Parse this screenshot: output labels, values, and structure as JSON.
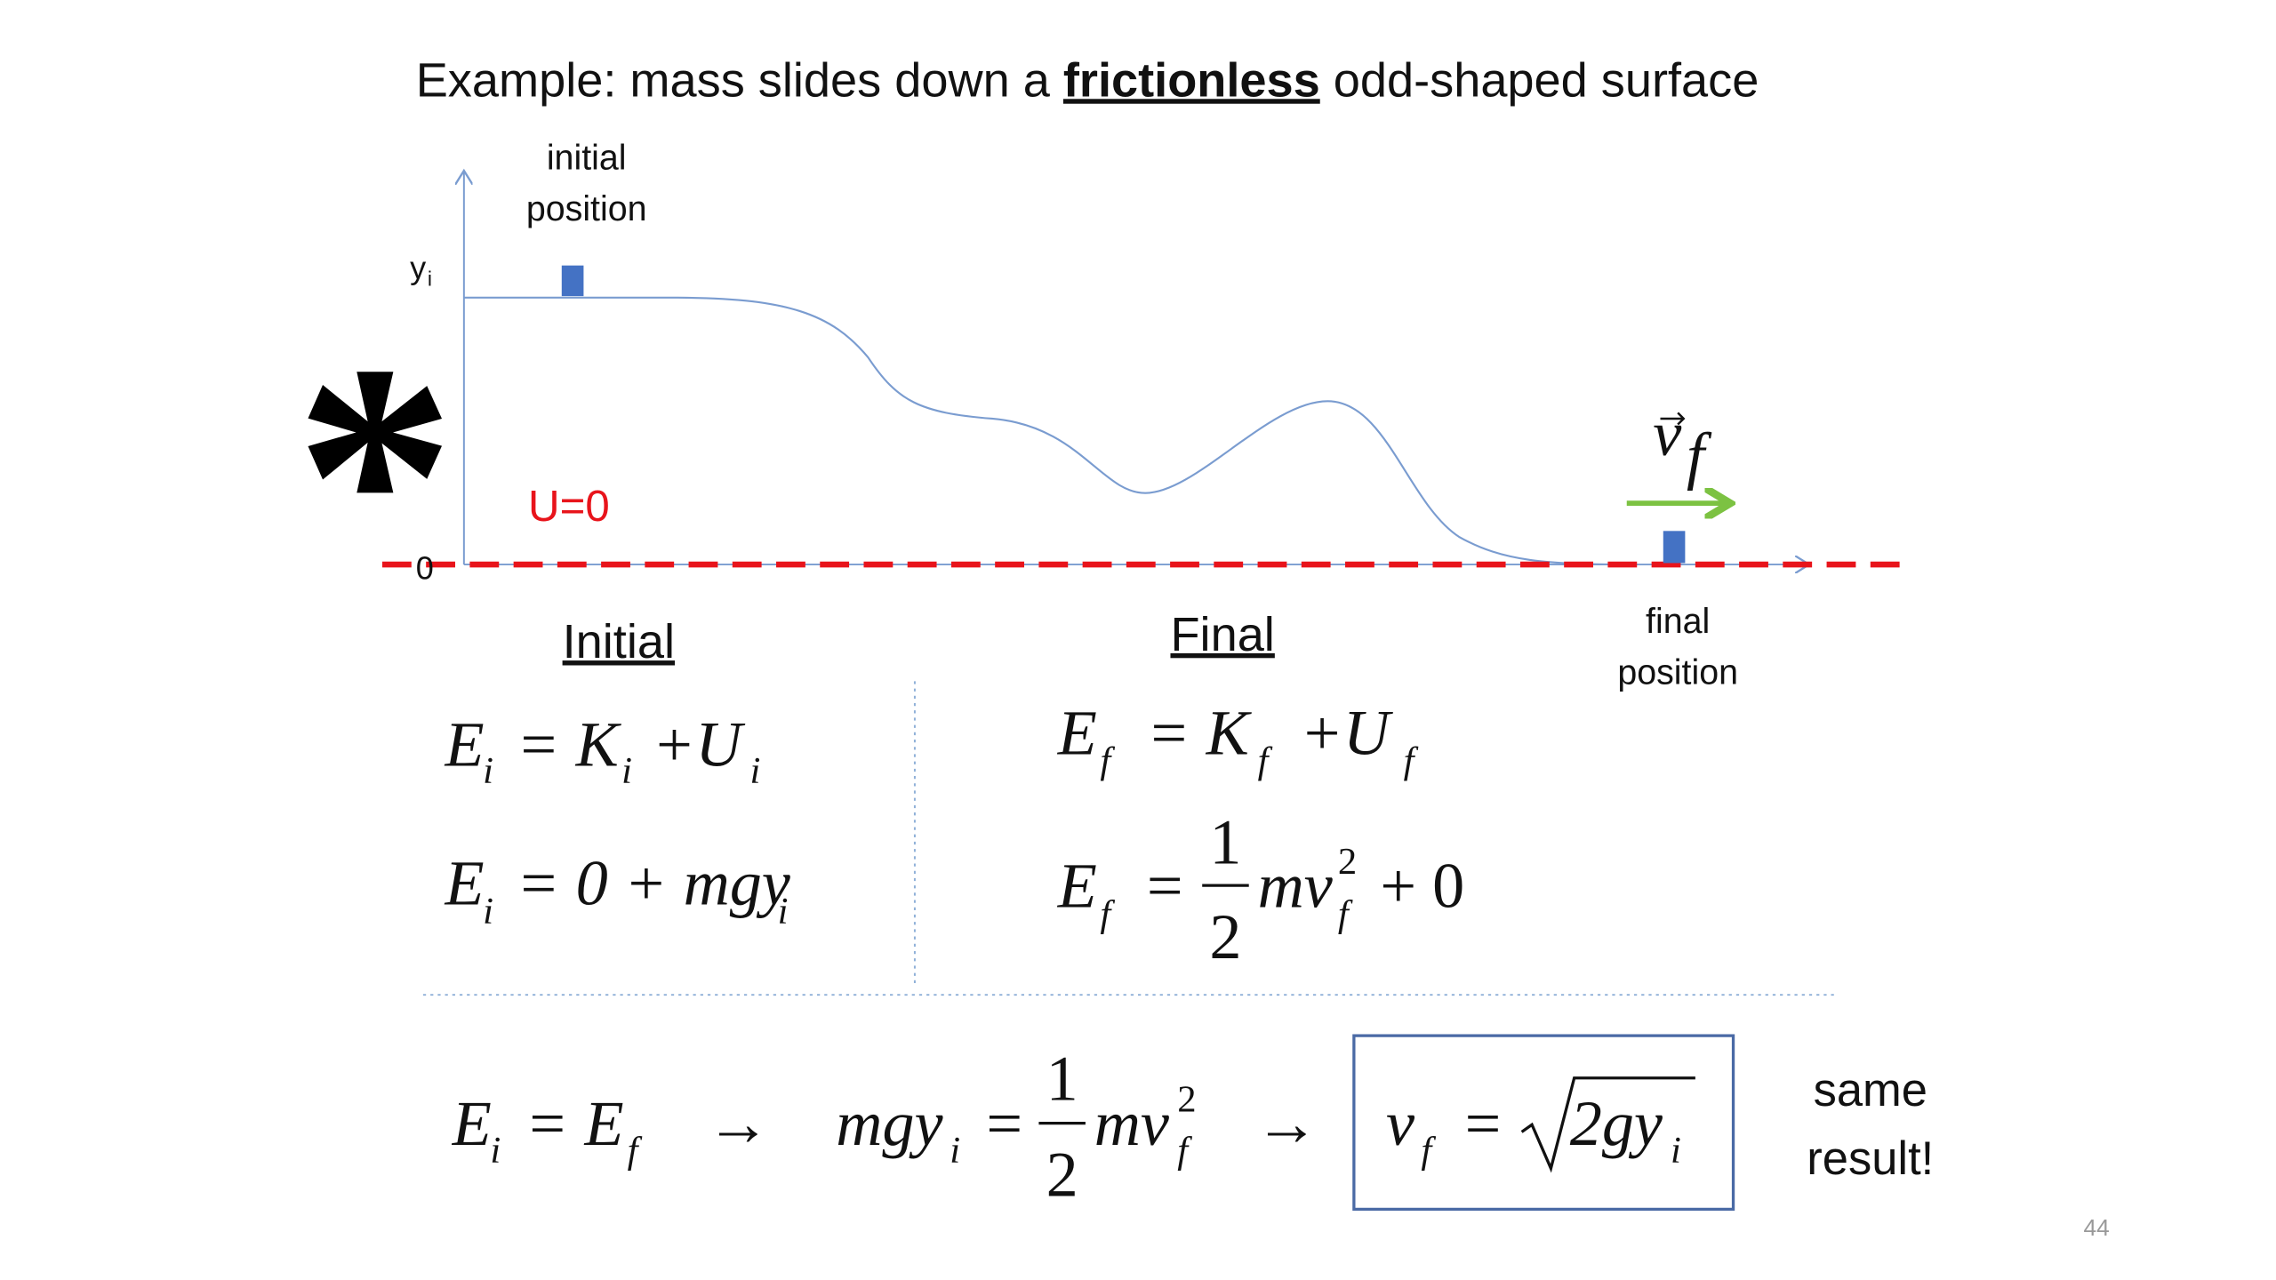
{
  "title": [
    "Example: mass slides down a ",
    "frictionless",
    " odd-shaped surface"
  ],
  "diagram": {
    "initial_label": [
      "initial",
      "position"
    ],
    "y_axis_label": [
      "y",
      "i"
    ],
    "origin": "0",
    "zero_label": "U=0",
    "velocity_label": [
      "v",
      "f"
    ],
    "final_label": [
      "final",
      "position"
    ],
    "marker": "*"
  },
  "initial": {
    "heading": "Initial",
    "equations": [
      [
        "E",
        "i",
        "= K",
        "i",
        "+U",
        "i"
      ],
      [
        "E",
        "i",
        "= 0 + mgy",
        "i"
      ]
    ]
  },
  "final": {
    "heading": "Final",
    "equations": [
      [
        "E",
        "f",
        "= K",
        "f",
        "+U",
        "f"
      ],
      [
        "E",
        "f",
        "=",
        "1",
        "2",
        "mv",
        "2",
        "f",
        "+ 0"
      ]
    ]
  },
  "conclusion": {
    "equation": [
      "E",
      "i",
      "= E",
      "f",
      "→",
      "mgy",
      "i",
      "=",
      "1",
      "2",
      "mv",
      "2",
      "f",
      "→"
    ],
    "result": [
      "v",
      "f",
      "=",
      "2gy",
      "i"
    ],
    "note": [
      "same",
      "result!"
    ]
  },
  "page_number": "44"
}
